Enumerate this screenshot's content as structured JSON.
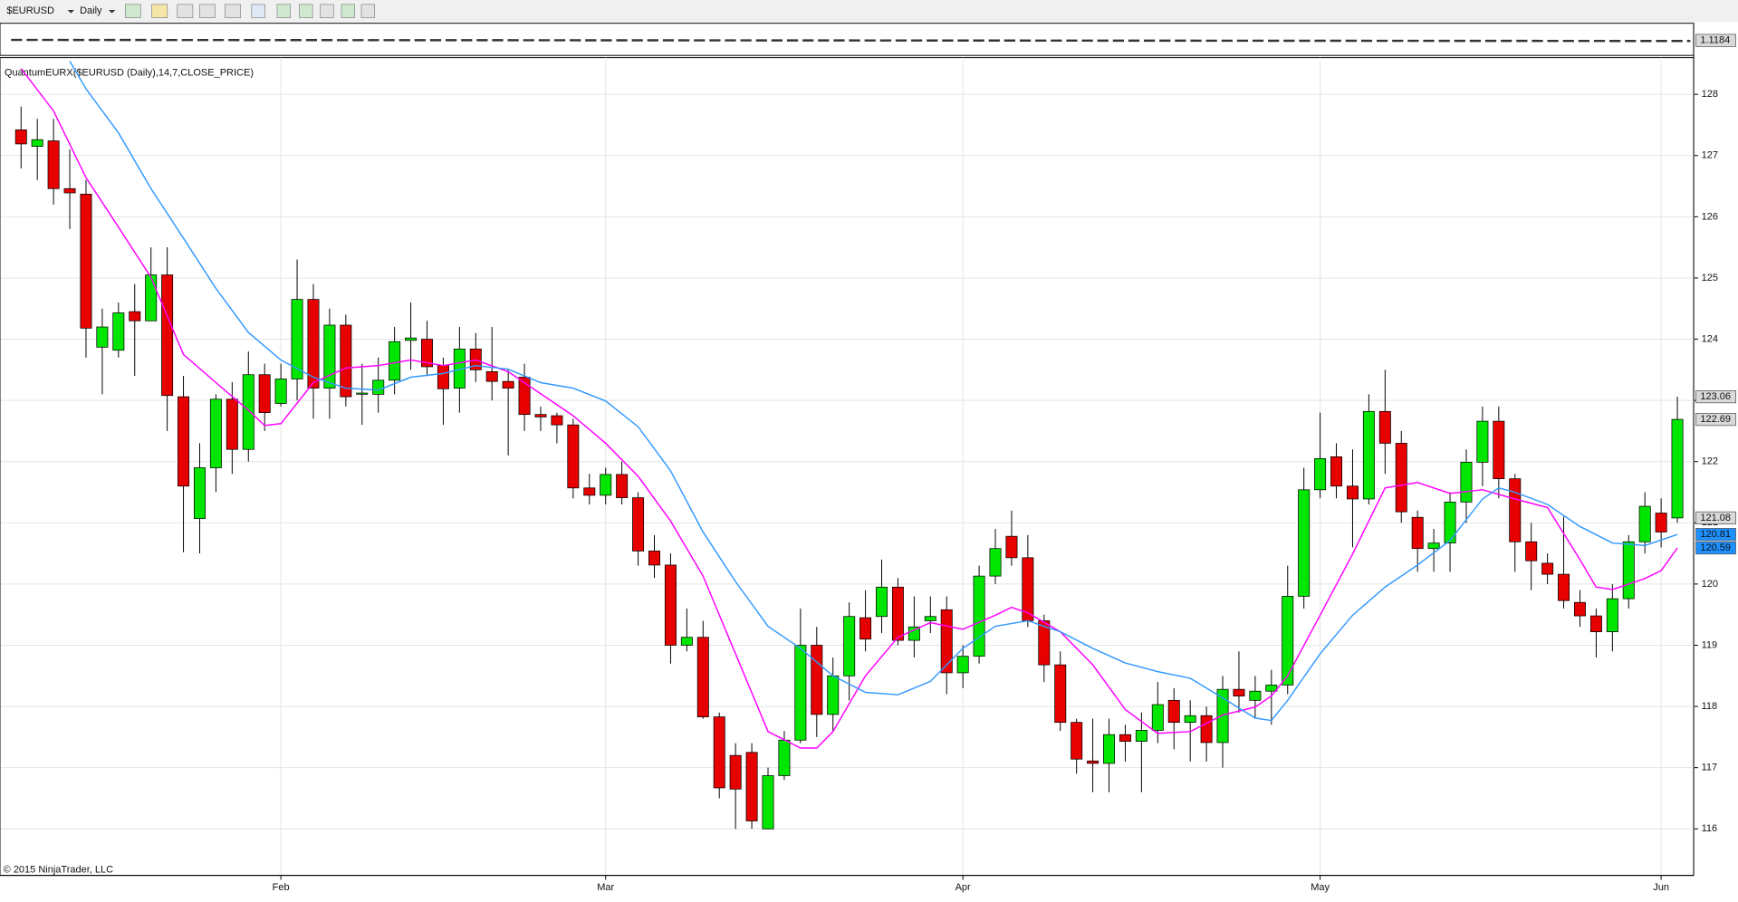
{
  "toolbar": {
    "symbol": "$EURUSD",
    "interval": "Daily"
  },
  "indicator_label": "QuantumEURX($EURUSD (Daily),14,7,CLOSE_PRICE)",
  "copyright": "© 2015 NinjaTrader, LLC",
  "top_panel": {
    "last": 1.1184
  },
  "chart_data": {
    "type": "candlestick",
    "categories": [
      null,
      null,
      null,
      null,
      null,
      null,
      null,
      null,
      null,
      null,
      null,
      null,
      null,
      null,
      null,
      null,
      "Feb",
      null,
      null,
      null,
      null,
      null,
      null,
      null,
      null,
      null,
      null,
      null,
      null,
      null,
      null,
      null,
      null,
      null,
      null,
      null,
      "Mar",
      null,
      null,
      null,
      null,
      null,
      null,
      null,
      null,
      null,
      null,
      null,
      null,
      null,
      null,
      null,
      null,
      null,
      null,
      null,
      null,
      null,
      "Apr",
      null,
      null,
      null,
      null,
      null,
      null,
      null,
      null,
      null,
      null,
      null,
      null,
      null,
      null,
      null,
      null,
      null,
      null,
      null,
      null,
      null,
      "May",
      null,
      null,
      null,
      null,
      null,
      null,
      null,
      null,
      null,
      null,
      null,
      null,
      null,
      null,
      null,
      null,
      null,
      null,
      null,
      null,
      "Jun",
      null
    ],
    "open": [
      127.42,
      127.15,
      127.24,
      126.46,
      126.37,
      123.87,
      123.82,
      124.45,
      124.3,
      125.05,
      123.06,
      121.07,
      121.9,
      123.02,
      122.2,
      123.42,
      122.95,
      123.35,
      124.65,
      123.2,
      124.23,
      123.1,
      123.1,
      123.33,
      123.98,
      124.0,
      123.57,
      123.2,
      123.84,
      123.47,
      123.31,
      123.38,
      122.77,
      122.75,
      122.6,
      121.57,
      121.45,
      121.79,
      121.41,
      120.54,
      120.31,
      119.0,
      119.13,
      117.83,
      117.2,
      117.25,
      116.0,
      116.87,
      117.45,
      119.0,
      117.87,
      118.5,
      119.45,
      119.47,
      119.95,
      119.08,
      119.4,
      119.58,
      118.55,
      118.82,
      120.13,
      120.78,
      120.43,
      119.4,
      118.68,
      117.74,
      117.11,
      117.07,
      117.54,
      117.43,
      117.61,
      118.1,
      117.74,
      117.85,
      117.41,
      118.28,
      118.1,
      118.25,
      118.35,
      119.8,
      121.54,
      122.08,
      121.6,
      121.39,
      122.82,
      122.3,
      121.09,
      120.58,
      120.67,
      121.34,
      121.99,
      122.66,
      121.72,
      120.69,
      120.34,
      120.16,
      119.7,
      119.48,
      119.22,
      119.76,
      120.69,
      121.16,
      121.08
    ],
    "high": [
      127.8,
      127.6,
      127.6,
      127.1,
      126.6,
      124.5,
      124.6,
      124.9,
      125.5,
      125.5,
      123.4,
      122.3,
      123.1,
      123.3,
      123.8,
      123.6,
      123.6,
      125.3,
      124.9,
      124.5,
      124.4,
      123.6,
      123.7,
      124.2,
      124.6,
      124.3,
      123.7,
      124.2,
      124.1,
      124.2,
      123.5,
      123.6,
      122.9,
      122.8,
      122.7,
      121.8,
      121.9,
      122.0,
      121.5,
      120.8,
      120.5,
      119.6,
      119.4,
      117.9,
      117.4,
      117.4,
      117.0,
      117.6,
      119.6,
      119.3,
      118.8,
      119.7,
      119.9,
      120.4,
      120.1,
      119.8,
      119.8,
      119.8,
      119.0,
      120.3,
      120.9,
      121.2,
      120.8,
      119.5,
      118.9,
      117.8,
      117.8,
      117.8,
      117.7,
      117.9,
      118.4,
      118.3,
      118.1,
      118.0,
      118.5,
      118.9,
      118.5,
      118.6,
      120.3,
      121.9,
      122.8,
      122.3,
      122.2,
      123.1,
      123.5,
      122.5,
      121.2,
      120.9,
      121.5,
      122.2,
      122.9,
      122.9,
      121.8,
      121.0,
      120.5,
      121.1,
      119.9,
      119.6,
      120.0,
      120.8,
      121.5,
      121.4,
      123.06
    ],
    "low": [
      126.79,
      126.6,
      126.2,
      125.8,
      123.7,
      123.1,
      123.7,
      123.4,
      124.3,
      122.5,
      120.52,
      120.5,
      121.5,
      121.8,
      122.0,
      122.5,
      122.9,
      123.0,
      122.7,
      122.7,
      122.9,
      122.6,
      122.8,
      123.1,
      123.5,
      123.4,
      122.6,
      122.8,
      123.3,
      123.0,
      122.1,
      122.5,
      122.5,
      122.3,
      121.4,
      121.3,
      121.3,
      121.3,
      120.3,
      120.1,
      118.7,
      118.9,
      117.8,
      116.5,
      116.0,
      116.0,
      116.0,
      116.8,
      117.4,
      117.5,
      117.6,
      118.1,
      118.9,
      119.2,
      119.0,
      118.8,
      119.2,
      118.2,
      118.3,
      118.7,
      120.0,
      120.3,
      119.3,
      118.4,
      117.6,
      116.9,
      116.6,
      116.6,
      117.1,
      116.6,
      117.4,
      117.3,
      117.1,
      117.1,
      117.0,
      117.9,
      117.8,
      117.7,
      118.2,
      119.6,
      121.4,
      121.4,
      120.6,
      121.3,
      121.8,
      121.0,
      120.2,
      120.2,
      120.2,
      121.0,
      121.6,
      121.4,
      120.2,
      119.9,
      120.0,
      119.6,
      119.3,
      118.8,
      118.9,
      119.6,
      120.5,
      120.6,
      121.0
    ],
    "close": [
      127.19,
      127.26,
      126.46,
      126.39,
      124.18,
      124.2,
      124.43,
      124.3,
      125.05,
      123.08,
      121.6,
      121.9,
      123.02,
      122.2,
      123.42,
      122.8,
      123.35,
      124.65,
      123.2,
      124.23,
      123.06,
      123.12,
      123.33,
      123.96,
      124.02,
      123.55,
      123.19,
      123.84,
      123.5,
      123.31,
      123.2,
      122.77,
      122.73,
      122.6,
      121.57,
      121.45,
      121.79,
      121.41,
      120.54,
      120.31,
      119.0,
      119.13,
      117.83,
      116.67,
      116.65,
      116.13,
      116.87,
      117.45,
      119.0,
      117.87,
      118.5,
      119.47,
      119.1,
      119.95,
      119.08,
      119.3,
      119.47,
      118.55,
      118.82,
      120.13,
      120.58,
      120.43,
      119.4,
      118.68,
      117.74,
      117.14,
      117.07,
      117.54,
      117.43,
      117.61,
      118.03,
      117.74,
      117.85,
      117.41,
      118.28,
      118.17,
      118.25,
      118.35,
      119.8,
      121.54,
      122.05,
      121.6,
      121.39,
      122.82,
      122.3,
      121.18,
      120.58,
      120.67,
      121.34,
      121.99,
      122.66,
      121.72,
      120.69,
      120.38,
      120.16,
      119.73,
      119.48,
      119.22,
      119.76,
      120.69,
      121.27,
      120.85,
      122.69
    ],
    "up_color": "#00e600",
    "down_color": "#e60000",
    "series": [
      {
        "color": "#ff00ff",
        "x": [
          0,
          2,
          4,
          6,
          8,
          10,
          12,
          14,
          15,
          16,
          18,
          20,
          22,
          24,
          26,
          28,
          30,
          32,
          34,
          36,
          38,
          40,
          42,
          44,
          46,
          48,
          49,
          50,
          52,
          54,
          56,
          58,
          60,
          61,
          62,
          64,
          66,
          68,
          70,
          72,
          74,
          76,
          77,
          78,
          80,
          82,
          84,
          86,
          88,
          90,
          92,
          94,
          96,
          97,
          98,
          100,
          101,
          102
        ],
        "values": [
          128.42,
          127.73,
          126.64,
          125.83,
          125.01,
          123.75,
          123.29,
          122.84,
          122.59,
          122.62,
          123.29,
          123.53,
          123.57,
          123.66,
          123.57,
          123.66,
          123.47,
          123.11,
          122.75,
          122.3,
          121.76,
          121.03,
          120.13,
          118.86,
          117.59,
          117.32,
          117.32,
          117.59,
          118.5,
          119.13,
          119.37,
          119.26,
          119.49,
          119.62,
          119.53,
          119.22,
          118.68,
          117.95,
          117.56,
          117.59,
          117.86,
          117.99,
          118.17,
          118.5,
          119.49,
          120.49,
          121.57,
          121.66,
          121.48,
          121.54,
          121.39,
          121.25,
          120.4,
          119.95,
          119.91,
          120.09,
          120.22,
          120.59
        ]
      },
      {
        "color": "#3399ff",
        "x": [
          3,
          4,
          6,
          8,
          10,
          12,
          14,
          16,
          18,
          20,
          22,
          24,
          26,
          28,
          30,
          32,
          34,
          36,
          38,
          40,
          42,
          44,
          46,
          48,
          50,
          52,
          54,
          56,
          58,
          60,
          62,
          64,
          66,
          68,
          70,
          72,
          74,
          76,
          77,
          78,
          80,
          82,
          84,
          86,
          88,
          90,
          91,
          92,
          94,
          96,
          98,
          100,
          102
        ],
        "values": [
          128.54,
          128.09,
          127.37,
          126.46,
          125.65,
          124.83,
          124.11,
          123.66,
          123.38,
          123.2,
          123.17,
          123.38,
          123.44,
          123.57,
          123.51,
          123.29,
          123.2,
          122.99,
          122.57,
          121.85,
          120.85,
          120.04,
          119.31,
          118.95,
          118.5,
          118.23,
          118.19,
          118.41,
          118.95,
          119.31,
          119.4,
          119.22,
          118.95,
          118.71,
          118.57,
          118.46,
          118.14,
          117.81,
          117.77,
          118.1,
          118.86,
          119.49,
          119.95,
          120.31,
          120.71,
          121.39,
          121.57,
          121.5,
          121.3,
          120.94,
          120.67,
          120.63,
          120.81
        ]
      }
    ],
    "price_markers": [
      {
        "value": 123.06,
        "color": "#d9d9d9"
      },
      {
        "value": 122.69,
        "color": "#d9d9d9"
      },
      {
        "value": 121.08,
        "color": "#d9d9d9"
      },
      {
        "value": 120.81,
        "color": "#1e90ff"
      },
      {
        "value": 120.59,
        "color": "#1e90ff"
      }
    ],
    "ylim": [
      115.24,
      128.6
    ],
    "yticks": [
      116,
      117,
      118,
      119,
      120,
      121,
      122,
      123,
      124,
      125,
      126,
      127,
      128
    ],
    "grid": true
  }
}
